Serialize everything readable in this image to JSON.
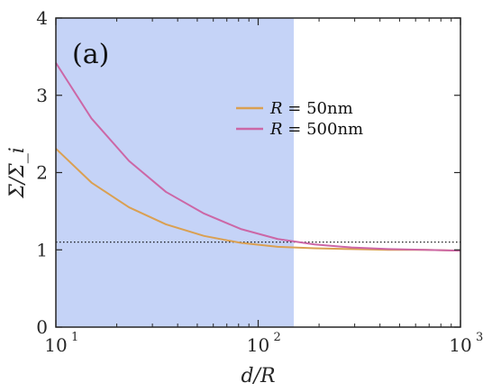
{
  "chart_data": {
    "type": "line",
    "panel_label": "(a)",
    "xlabel": "d/R",
    "ylabel": "Σ/Σ_i",
    "xscale": "log",
    "xlim": [
      10,
      1000
    ],
    "ylim": [
      0,
      4
    ],
    "xticks": [
      {
        "value": 10,
        "label": "10",
        "exp": "1"
      },
      {
        "value": 100,
        "label": "10",
        "exp": "2"
      },
      {
        "value": 1000,
        "label": "10",
        "exp": "3"
      }
    ],
    "yticks": [
      0,
      1,
      2,
      3,
      4
    ],
    "grid": false,
    "legend_position": "upper-center",
    "shaded_region": {
      "x": [
        10,
        150
      ],
      "color": "#c5d3f7"
    },
    "reference_line": {
      "y": 1.1,
      "style": "dotted",
      "color": "#000000"
    },
    "series": [
      {
        "name": "R = 50nm",
        "legend_var": "R",
        "legend_rest": " = 50nm",
        "color": "#daa052",
        "x": [
          10,
          15,
          23,
          35,
          54,
          82,
          125,
          190,
          290,
          440,
          670,
          1000
        ],
        "y": [
          2.31,
          1.87,
          1.55,
          1.33,
          1.18,
          1.09,
          1.04,
          1.02,
          1.01,
          1.0,
          1.0,
          0.99
        ]
      },
      {
        "name": "R = 500nm",
        "legend_var": "R",
        "legend_rest": " = 500nm",
        "color": "#cc67a6",
        "x": [
          10,
          15,
          23,
          35,
          54,
          82,
          125,
          190,
          290,
          440,
          670,
          1000
        ],
        "y": [
          3.42,
          2.7,
          2.15,
          1.75,
          1.47,
          1.27,
          1.14,
          1.07,
          1.03,
          1.01,
          1.0,
          0.99
        ]
      }
    ]
  }
}
